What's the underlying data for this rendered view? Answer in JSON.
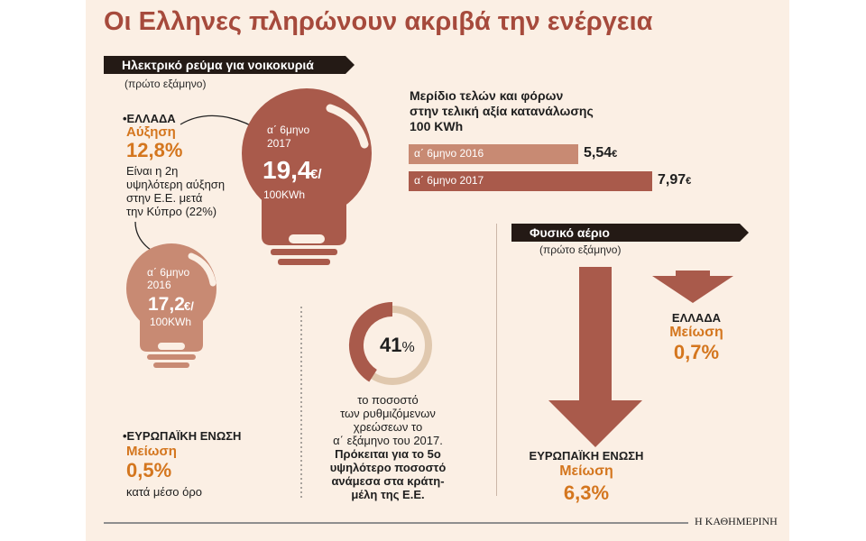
{
  "title": "Οι Ελληνες πληρώνουν ακριβά την ενέργεια",
  "electricity": {
    "banner": "Ηλεκτρικό ρεύμα για νοικοκυριά",
    "period": "(πρώτο εξάμηνο)",
    "greece": {
      "country": "•ΕΛΛΑΔΑ",
      "change_label": "Αύξηση",
      "change_value": "12,8%",
      "note_lines": [
        "Είναι η 2η",
        "υψηλότερη αύξηση",
        "στην Ε.Ε. μετά",
        "την Κύπρο (22%)"
      ]
    },
    "eu": {
      "country": "•ΕΥΡΩΠΑΪΚΗ ΕΝΩΣΗ",
      "change_label": "Μείωση",
      "change_value": "0,5%",
      "note": "κατά μέσο όρο"
    },
    "bulb_2017": {
      "period_line1": "α΄ 6μηνο",
      "period_line2": "2017",
      "value": "19,4",
      "unit_top": "€/",
      "unit_bottom": "100KWh"
    },
    "bulb_2016": {
      "period_line1": "α΄ 6μηνο",
      "period_line2": "2016",
      "value": "17,2",
      "unit_top": "€/",
      "unit_bottom": "100KWh"
    }
  },
  "donut": {
    "value_number": "41",
    "value_suffix": "%",
    "caption_lines": [
      "το ποσοστό",
      "των ρυθμιζόμενων",
      "χρεώσεων το",
      "α΄ εξάμηνο του 2017."
    ],
    "caption_bold_lines": [
      "Πρόκειται για το 5ο",
      "υψηλότερο ποσοστό",
      "ανάμεσα στα κράτη-",
      "μέλη της Ε.Ε."
    ]
  },
  "taxes": {
    "title_lines": [
      "Μερίδιο τελών και φόρων",
      "στην τελική αξία κατανάλωσης",
      "100 KWh"
    ],
    "bars": [
      {
        "label": "α΄ 6μηνο 2016",
        "value_text": "5,54",
        "currency": "€"
      },
      {
        "label": "α΄ 6μηνο 2017",
        "value_text": "7,97",
        "currency": "€"
      }
    ]
  },
  "gas": {
    "banner": "Φυσικό αέριο",
    "period": "(πρώτο εξάμηνο)",
    "greece": {
      "country": "ΕΛΛΑΔΑ",
      "change_label": "Μείωση",
      "change_value": "0,7%"
    },
    "eu": {
      "country": "ΕΥΡΩΠΑΪΚΗ ΕΝΩΣΗ",
      "change_label": "Μείωση",
      "change_value": "6,3%"
    }
  },
  "source": "Η ΚΑΘΗΜΕΡΙΝΗ",
  "colors": {
    "dark_red": "#a95a4b",
    "light_red": "#c88a73",
    "orange": "#d4761e",
    "panel": "#fbefe4",
    "ring_light": "#e0c8ae",
    "banner_bg": "#241a15"
  },
  "chart_data": [
    {
      "type": "bar",
      "title": "Μερίδιο τελών και φόρων στην τελική αξία κατανάλωσης 100 KWh",
      "categories": [
        "α΄ 6μηνο 2016",
        "α΄ 6μηνο 2017"
      ],
      "values": [
        5.54,
        7.97
      ],
      "unit": "€",
      "orientation": "horizontal"
    },
    {
      "type": "pie",
      "values": [
        41,
        59
      ],
      "highlight": 41,
      "unit": "%"
    },
    {
      "type": "bar",
      "title": "Φυσικό αέριο",
      "categories": [
        "ΕΥΡΩΠΑΪΚΗ ΕΝΩΣΗ",
        "ΕΛΛΑΔΑ"
      ],
      "values": [
        -6.3,
        -0.7
      ],
      "unit": "%"
    },
    {
      "type": "bar",
      "title": "Ηλεκτρικό ρεύμα για νοικοκυριά",
      "categories": [
        "α΄ 6μηνο 2016",
        "α΄ 6μηνο 2017"
      ],
      "values": [
        17.2,
        19.4
      ],
      "unit": "€/100KWh"
    }
  ]
}
